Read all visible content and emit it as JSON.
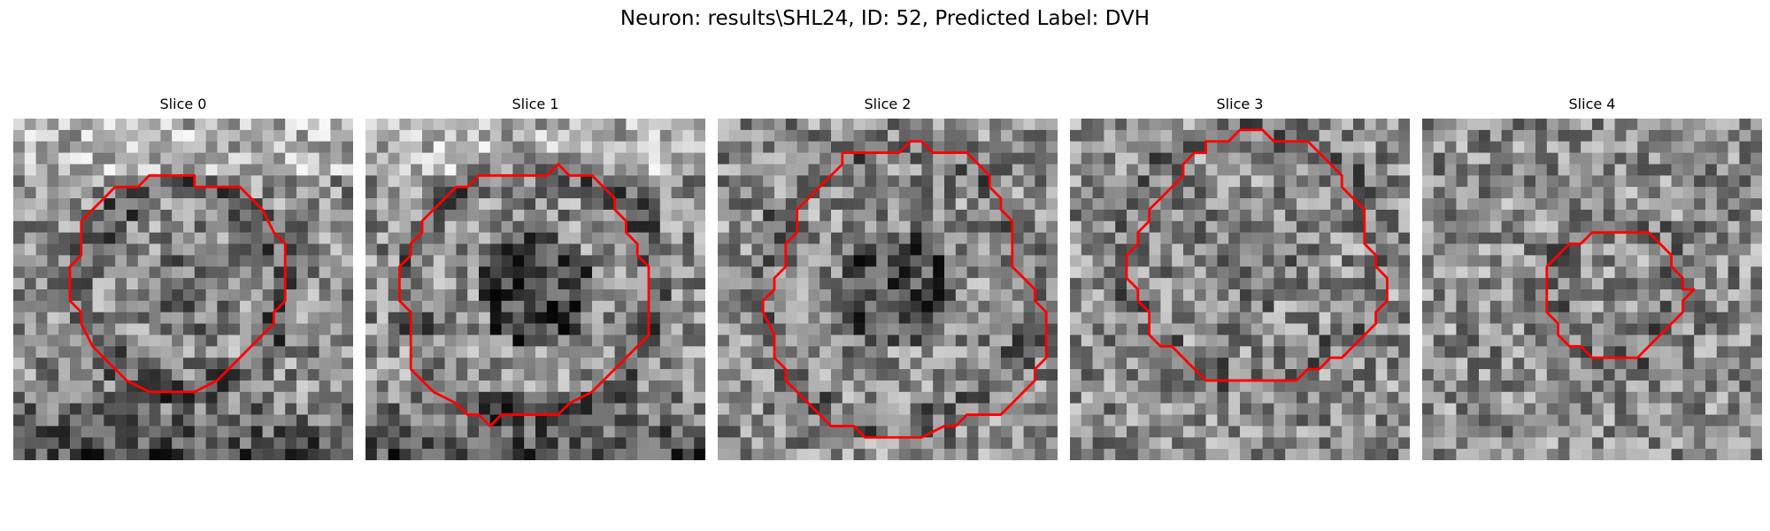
{
  "figure": {
    "title": "Neuron: results\\SHL24, ID: 52, Predicted Label: DVH",
    "contour_color": "#ff0000",
    "colormap": "gray",
    "panels": [
      {
        "title": "Slice 0",
        "outline": [
          [
            16,
            6
          ],
          [
            20,
            6
          ],
          [
            21,
            7
          ],
          [
            22,
            8
          ],
          [
            23,
            10
          ],
          [
            24,
            11
          ],
          [
            24,
            16
          ],
          [
            23,
            17
          ],
          [
            23,
            18
          ],
          [
            22,
            19
          ],
          [
            21,
            20
          ],
          [
            20,
            21
          ],
          [
            19,
            22
          ],
          [
            18,
            23
          ],
          [
            16,
            24
          ],
          [
            12,
            24
          ],
          [
            10,
            23
          ],
          [
            9,
            22
          ],
          [
            8,
            21
          ],
          [
            7,
            20
          ],
          [
            6,
            18
          ],
          [
            6,
            17
          ],
          [
            5,
            16
          ],
          [
            5,
            13
          ],
          [
            6,
            12
          ],
          [
            6,
            9
          ],
          [
            7,
            8
          ],
          [
            8,
            7
          ],
          [
            9,
            6
          ],
          [
            11,
            6
          ],
          [
            12,
            5
          ],
          [
            16,
            5
          ]
        ]
      },
      {
        "title": "Slice 1",
        "outline": [
          [
            12,
            5
          ],
          [
            16,
            5
          ],
          [
            17,
            4
          ],
          [
            18,
            5
          ],
          [
            20,
            5
          ],
          [
            21,
            6
          ],
          [
            22,
            7
          ],
          [
            22,
            8
          ],
          [
            23,
            9
          ],
          [
            23,
            10
          ],
          [
            24,
            11
          ],
          [
            24,
            12
          ],
          [
            25,
            13
          ],
          [
            25,
            19
          ],
          [
            24,
            20
          ],
          [
            23,
            21
          ],
          [
            22,
            22
          ],
          [
            21,
            23
          ],
          [
            20,
            24
          ],
          [
            18,
            25
          ],
          [
            17,
            26
          ],
          [
            14,
            26
          ],
          [
            12,
            26
          ],
          [
            11,
            27
          ],
          [
            10,
            26
          ],
          [
            9,
            26
          ],
          [
            8,
            25
          ],
          [
            6,
            24
          ],
          [
            5,
            23
          ],
          [
            4,
            22
          ],
          [
            4,
            17
          ],
          [
            3,
            16
          ],
          [
            3,
            13
          ],
          [
            4,
            12
          ],
          [
            4,
            11
          ],
          [
            5,
            10
          ],
          [
            5,
            9
          ],
          [
            6,
            8
          ],
          [
            7,
            7
          ],
          [
            8,
            6
          ],
          [
            9,
            6
          ],
          [
            10,
            5
          ],
          [
            12,
            5
          ]
        ]
      },
      {
        "title": "Slice 2",
        "outline": [
          [
            11,
            3
          ],
          [
            16,
            3
          ],
          [
            17,
            2
          ],
          [
            18,
            2
          ],
          [
            19,
            3
          ],
          [
            22,
            3
          ],
          [
            23,
            4
          ],
          [
            24,
            5
          ],
          [
            24,
            6
          ],
          [
            25,
            7
          ],
          [
            25,
            8
          ],
          [
            26,
            9
          ],
          [
            26,
            13
          ],
          [
            27,
            14
          ],
          [
            28,
            15
          ],
          [
            28,
            16
          ],
          [
            29,
            17
          ],
          [
            29,
            21
          ],
          [
            28,
            22
          ],
          [
            28,
            23
          ],
          [
            27,
            24
          ],
          [
            26,
            25
          ],
          [
            25,
            26
          ],
          [
            22,
            26
          ],
          [
            21,
            27
          ],
          [
            20,
            27
          ],
          [
            18,
            28
          ],
          [
            16,
            28
          ],
          [
            13,
            28
          ],
          [
            12,
            27
          ],
          [
            10,
            27
          ],
          [
            9,
            26
          ],
          [
            8,
            25
          ],
          [
            7,
            24
          ],
          [
            6,
            23
          ],
          [
            6,
            22
          ],
          [
            5,
            21
          ],
          [
            5,
            19
          ],
          [
            4,
            17
          ],
          [
            4,
            16
          ],
          [
            5,
            15
          ],
          [
            5,
            14
          ],
          [
            6,
            13
          ],
          [
            6,
            11
          ],
          [
            7,
            10
          ],
          [
            7,
            8
          ],
          [
            8,
            7
          ],
          [
            9,
            6
          ],
          [
            10,
            5
          ],
          [
            11,
            4
          ],
          [
            11,
            3
          ]
        ]
      },
      {
        "title": "Slice 3",
        "outline": [
          [
            13,
            2
          ],
          [
            14,
            2
          ],
          [
            15,
            1
          ],
          [
            17,
            1
          ],
          [
            18,
            2
          ],
          [
            21,
            2
          ],
          [
            22,
            3
          ],
          [
            23,
            4
          ],
          [
            24,
            5
          ],
          [
            24,
            6
          ],
          [
            25,
            7
          ],
          [
            26,
            8
          ],
          [
            26,
            9
          ],
          [
            26,
            11
          ],
          [
            27,
            12
          ],
          [
            27,
            13
          ],
          [
            28,
            14
          ],
          [
            28,
            16
          ],
          [
            27,
            17
          ],
          [
            27,
            18
          ],
          [
            26,
            19
          ],
          [
            25,
            20
          ],
          [
            24,
            21
          ],
          [
            23,
            21
          ],
          [
            22,
            22
          ],
          [
            21,
            22
          ],
          [
            20,
            23
          ],
          [
            16,
            23
          ],
          [
            12,
            23
          ],
          [
            11,
            22
          ],
          [
            10,
            21
          ],
          [
            9,
            20
          ],
          [
            8,
            20
          ],
          [
            7,
            19
          ],
          [
            7,
            17
          ],
          [
            6,
            16
          ],
          [
            6,
            15
          ],
          [
            5,
            14
          ],
          [
            5,
            12
          ],
          [
            6,
            11
          ],
          [
            6,
            10
          ],
          [
            7,
            9
          ],
          [
            7,
            8
          ],
          [
            8,
            7
          ],
          [
            9,
            6
          ],
          [
            10,
            5
          ],
          [
            10,
            4
          ],
          [
            11,
            3
          ],
          [
            12,
            3
          ],
          [
            12,
            2
          ],
          [
            13,
            2
          ]
        ]
      },
      {
        "title": "Slice 4",
        "outline": [
          [
            16,
            10
          ],
          [
            20,
            10
          ],
          [
            21,
            11
          ],
          [
            22,
            12
          ],
          [
            22,
            13
          ],
          [
            23,
            14
          ],
          [
            23,
            15
          ],
          [
            24,
            15
          ],
          [
            23,
            16
          ],
          [
            23,
            17
          ],
          [
            22,
            18
          ],
          [
            21,
            19
          ],
          [
            20,
            20
          ],
          [
            19,
            21
          ],
          [
            17,
            21
          ],
          [
            15,
            21
          ],
          [
            14,
            20
          ],
          [
            13,
            20
          ],
          [
            12,
            19
          ],
          [
            12,
            18
          ],
          [
            11,
            17
          ],
          [
            11,
            13
          ],
          [
            12,
            12
          ],
          [
            13,
            11
          ],
          [
            14,
            11
          ],
          [
            15,
            10
          ],
          [
            16,
            10
          ]
        ]
      }
    ]
  }
}
